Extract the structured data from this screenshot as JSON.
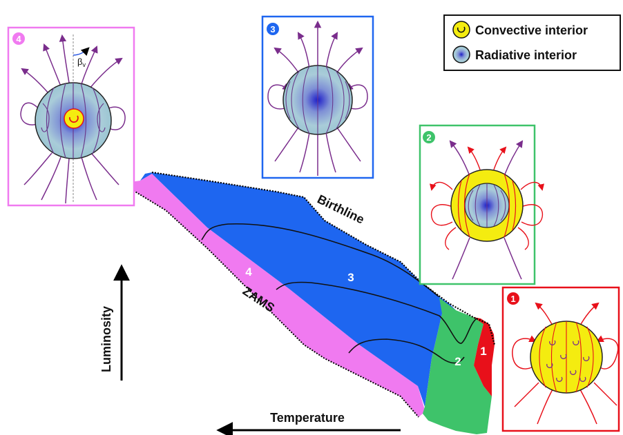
{
  "legend": {
    "convective_label": "Convective interior",
    "radiative_label": "Radiative interior"
  },
  "axes": {
    "y_label": "Luminosity",
    "x_label": "Temperature"
  },
  "curves": {
    "birthline_label": "Birthline",
    "zams_label": "ZAMS"
  },
  "regions": {
    "r1": "1",
    "r2": "2",
    "r3": "3",
    "r4": "4"
  },
  "panels": {
    "p1_badge": "1",
    "p2_badge": "2",
    "p3_badge": "3",
    "p4_badge": "4",
    "p4_angle_label": "β",
    "p4_angle_sub": "v"
  },
  "colors": {
    "magenta": "#f07af0",
    "blue": "#1e66f0",
    "green": "#3ec36a",
    "red": "#e8101a",
    "yellow": "#f4ec10",
    "field_purple": "#7a2d8c",
    "field_red": "#e8101a",
    "sphere_edge": "#1a1a1a"
  }
}
